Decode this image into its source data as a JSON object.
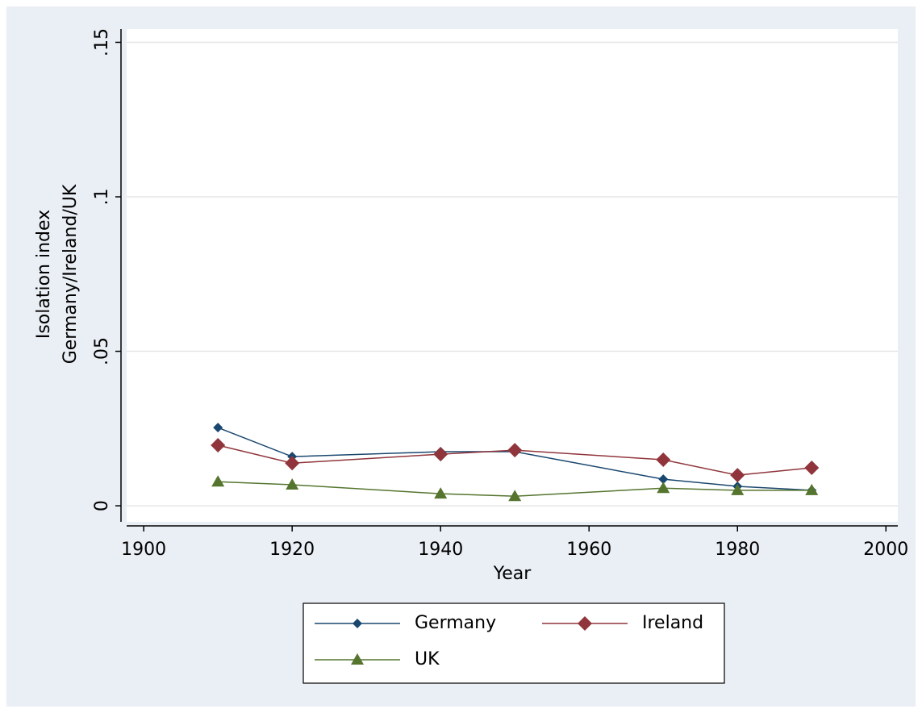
{
  "chart_data": {
    "type": "line",
    "y_label": [
      "Isolation index",
      "Germany/Ireland/UK"
    ],
    "x_label": "Year",
    "x": [
      1910,
      1920,
      1940,
      1950,
      1970,
      1980,
      1990
    ],
    "series": [
      {
        "name": "Germany",
        "color": "#1a476f",
        "marker": "diamond-small",
        "values": [
          0.0253,
          0.0159,
          0.0175,
          0.0175,
          0.0086,
          0.0063,
          0.005
        ]
      },
      {
        "name": "Ireland",
        "color": "#90353b",
        "marker": "diamond",
        "values": [
          0.0196,
          0.0138,
          0.0167,
          0.018,
          0.0149,
          0.0099,
          0.0123
        ]
      },
      {
        "name": "UK",
        "color": "#55752f",
        "marker": "triangle",
        "values": [
          0.0078,
          0.0068,
          0.0039,
          0.0031,
          0.0057,
          0.005,
          0.005
        ]
      }
    ],
    "xlim": [
      1897.7,
      2001.6
    ],
    "xticks": [
      1900,
      1920,
      1940,
      1960,
      1980,
      2000
    ],
    "ylim": [
      -0.0052,
      0.1543
    ],
    "yticks": [
      0,
      {
        "value": 0.05,
        "label": ".05"
      },
      {
        "value": 0.1,
        "label": ".1"
      },
      {
        "value": 0.15,
        "label": ".15"
      }
    ],
    "grid": true,
    "legend": "bottom"
  }
}
